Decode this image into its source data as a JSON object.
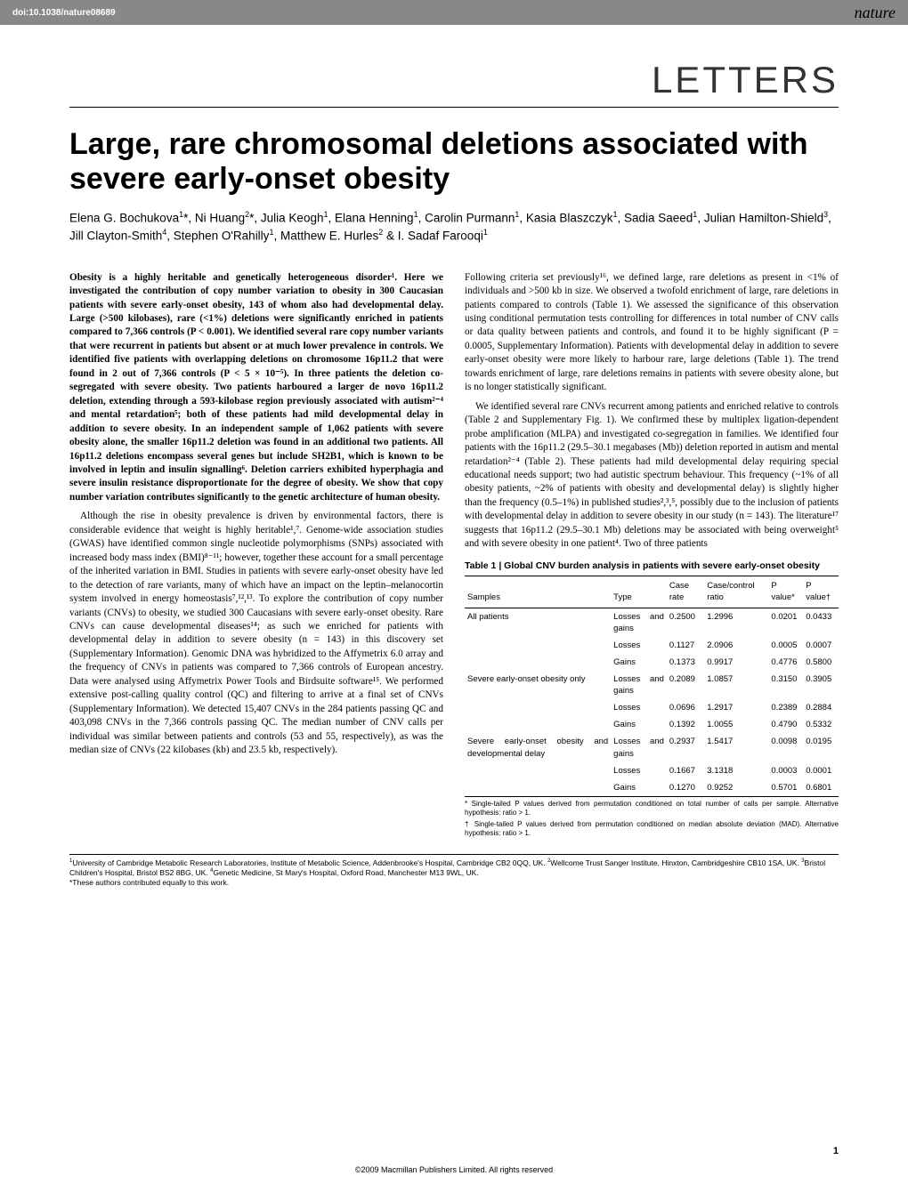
{
  "topbar": {
    "doi": "doi:10.1038/nature08689",
    "brand": "nature"
  },
  "section_label": "LETTERS",
  "title": "Large, rare chromosomal deletions associated with severe early-onset obesity",
  "authors_html": "Elena G. Bochukova<sup>1</sup>*, Ni Huang<sup>2</sup>*, Julia Keogh<sup>1</sup>, Elana Henning<sup>1</sup>, Carolin Purmann<sup>1</sup>, Kasia Blaszczyk<sup>1</sup>, Sadia Saeed<sup>1</sup>, Julian Hamilton-Shield<sup>3</sup>, Jill Clayton-Smith<sup>4</sup>, Stephen O'Rahilly<sup>1</sup>, Matthew E. Hurles<sup>2</sup> & I. Sadaf Farooqi<sup>1</sup>",
  "left_col": {
    "abstract": "Obesity is a highly heritable and genetically heterogeneous disorder¹. Here we investigated the contribution of copy number variation to obesity in 300 Caucasian patients with severe early-onset obesity, 143 of whom also had developmental delay. Large (>500 kilobases), rare (<1%) deletions were significantly enriched in patients compared to 7,366 controls (P < 0.001). We identified several rare copy number variants that were recurrent in patients but absent or at much lower prevalence in controls. We identified five patients with overlapping deletions on chromosome 16p11.2 that were found in 2 out of 7,366 controls (P < 5 × 10⁻⁵). In three patients the deletion co-segregated with severe obesity. Two patients harboured a larger de novo 16p11.2 deletion, extending through a 593-kilobase region previously associated with autism²⁻⁴ and mental retardation⁵; both of these patients had mild developmental delay in addition to severe obesity. In an independent sample of 1,062 patients with severe obesity alone, the smaller 16p11.2 deletion was found in an additional two patients. All 16p11.2 deletions encompass several genes but include SH2B1, which is known to be involved in leptin and insulin signalling⁶. Deletion carriers exhibited hyperphagia and severe insulin resistance disproportionate for the degree of obesity. We show that copy number variation contributes significantly to the genetic architecture of human obesity.",
    "para2": "Although the rise in obesity prevalence is driven by environmental factors, there is considerable evidence that weight is highly heritable¹,⁷. Genome-wide association studies (GWAS) have identified common single nucleotide polymorphisms (SNPs) associated with increased body mass index (BMI)⁸⁻¹¹; however, together these account for a small percentage of the inherited variation in BMI. Studies in patients with severe early-onset obesity have led to the detection of rare variants, many of which have an impact on the leptin–melanocortin system involved in energy homeostasis⁷,¹²,¹³. To explore the contribution of copy number variants (CNVs) to obesity, we studied 300 Caucasians with severe early-onset obesity. Rare CNVs can cause developmental diseases¹⁴; as such we enriched for patients with developmental delay in addition to severe obesity (n = 143) in this discovery set (Supplementary Information). Genomic DNA was hybridized to the Affymetrix 6.0 array and the frequency of CNVs in patients was compared to 7,366 controls of European ancestry. Data were analysed using Affymetrix Power Tools and Birdsuite software¹⁵. We performed extensive post-calling quality control (QC) and filtering to arrive at a final set of CNVs (Supplementary Information). We detected 15,407 CNVs in the 284 patients passing QC and 403,098 CNVs in the 7,366 controls passing QC. The median number of CNV calls per individual was similar between patients and controls (53 and 55, respectively), as was the median size of CNVs (22 kilobases (kb) and 23.5 kb, respectively)."
  },
  "right_col": {
    "para1": "Following criteria set previously¹⁶, we defined large, rare deletions as present in <1% of individuals and >500 kb in size. We observed a twofold enrichment of large, rare deletions in patients compared to controls (Table 1). We assessed the significance of this observation using conditional permutation tests controlling for differences in total number of CNV calls or data quality between patients and controls, and found it to be highly significant (P = 0.0005, Supplementary Information). Patients with developmental delay in addition to severe early-onset obesity were more likely to harbour rare, large deletions (Table 1). The trend towards enrichment of large, rare deletions remains in patients with severe obesity alone, but is no longer statistically significant.",
    "para2": "We identified several rare CNVs recurrent among patients and enriched relative to controls (Table 2 and Supplementary Fig. 1). We confirmed these by multiplex ligation-dependent probe amplification (MLPA) and investigated co-segregation in families. We identified four patients with the 16p11.2 (29.5–30.1 megabases (Mb)) deletion reported in autism and mental retardation²⁻⁴ (Table 2). These patients had mild developmental delay requiring special educational needs support; two had autistic spectrum behaviour. This frequency (~1% of all obesity patients, ~2% of patients with obesity and developmental delay) is slightly higher than the frequency (0.5–1%) in published studies²,³,⁵, possibly due to the inclusion of patients with developmental delay in addition to severe obesity in our study (n = 143). The literature¹⁷ suggests that 16p11.2 (29.5–30.1 Mb) deletions may be associated with being overweight⁵ and with severe obesity in one patient⁴. Two of three patients"
  },
  "table1": {
    "title": "Table 1 | Global CNV burden analysis in patients with severe early-onset obesity",
    "headers": [
      "Samples",
      "Type",
      "Case rate",
      "Case/control ratio",
      "P value*",
      "P value†"
    ],
    "rows": [
      [
        "All patients",
        "Losses and gains",
        "0.2500",
        "1.2996",
        "0.0201",
        "0.0433"
      ],
      [
        "",
        "Losses",
        "0.1127",
        "2.0906",
        "0.0005",
        "0.0007"
      ],
      [
        "",
        "Gains",
        "0.1373",
        "0.9917",
        "0.4776",
        "0.5800"
      ],
      [
        "Severe early-onset obesity only",
        "Losses and gains",
        "0.2089",
        "1.0857",
        "0.3150",
        "0.3905"
      ],
      [
        "",
        "Losses",
        "0.0696",
        "1.2917",
        "0.2389",
        "0.2884"
      ],
      [
        "",
        "Gains",
        "0.1392",
        "1.0055",
        "0.4790",
        "0.5332"
      ],
      [
        "Severe early-onset obesity and developmental delay",
        "Losses and gains",
        "0.2937",
        "1.5417",
        "0.0098",
        "0.0195"
      ],
      [
        "",
        "Losses",
        "0.1667",
        "3.1318",
        "0.0003",
        "0.0001"
      ],
      [
        "",
        "Gains",
        "0.1270",
        "0.9252",
        "0.5701",
        "0.6801"
      ]
    ],
    "note1": "* Single-tailed P values derived from permutation conditioned on total number of calls per sample. Alternative hypothesis: ratio > 1.",
    "note2": "† Single-tailed P values derived from permutation conditioned on median absolute deviation (MAD). Alternative hypothesis: ratio > 1."
  },
  "affiliations_html": "<sup>1</sup>University of Cambridge Metabolic Research Laboratories, Institute of Metabolic Science, Addenbrooke's Hospital, Cambridge CB2 0QQ, UK. <sup>2</sup>Wellcome Trust Sanger Institute, Hinxton, Cambridgeshire CB10 1SA, UK. <sup>3</sup>Bristol Children's Hospital, Bristol BS2 8BG, UK. <sup>4</sup>Genetic Medicine, St Mary's Hospital, Oxford Road, Manchester M13 9WL, UK.<br>*These authors contributed equally to this work.",
  "footer": "©2009 Macmillan Publishers Limited. All rights reserved",
  "page_num": "1"
}
